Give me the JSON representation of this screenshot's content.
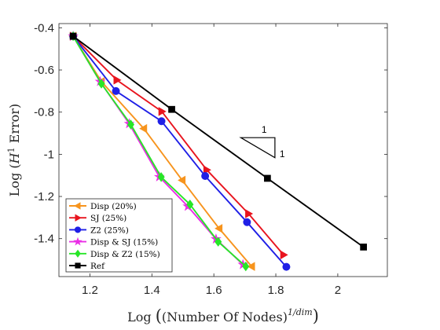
{
  "chart_data": {
    "type": "line",
    "xlabel": "",
    "ylabel": "",
    "xlabel_parts": {
      "prefix": "Log",
      "inner": "(Number Of Nodes)",
      "exponent": "1/dim"
    },
    "ylabel_parts": {
      "prefix": "Log",
      "inner_before": "H",
      "sup": "1",
      "inner_after": " Error"
    },
    "xlim": [
      1.1,
      2.16
    ],
    "ylim": [
      -1.58,
      -0.38
    ],
    "xticks": [
      1.2,
      1.4,
      1.6,
      1.8,
      2
    ],
    "xtick_labels": [
      "1.2",
      "1.4",
      "1.6",
      "1.8",
      "2"
    ],
    "yticks": [
      -0.4,
      -0.6,
      -0.8,
      -1,
      -1.2,
      -1.4
    ],
    "ytick_labels": [
      "-0.4",
      "-0.6",
      "-0.8",
      "-1",
      "-1.2",
      "-1.4"
    ],
    "grid": false,
    "legend_position": "bottom-left",
    "series": [
      {
        "name": "Disp (20%)",
        "color": "#f7941d",
        "marker": "triangle-left",
        "x": [
          1.146,
          1.237,
          1.374,
          1.498,
          1.617,
          1.722
        ],
        "y": [
          -0.44,
          -0.655,
          -0.878,
          -1.123,
          -1.352,
          -1.532
        ]
      },
      {
        "name": "SJ (25%)",
        "color": "#e8141e",
        "marker": "triangle-right",
        "x": [
          1.146,
          1.287,
          1.432,
          1.577,
          1.712,
          1.825
        ],
        "y": [
          -0.44,
          -0.648,
          -0.797,
          -1.074,
          -1.282,
          -1.477
        ]
      },
      {
        "name": "Z2 (25%)",
        "color": "#1f1fe6",
        "marker": "circle",
        "x": [
          1.146,
          1.284,
          1.431,
          1.572,
          1.707,
          1.834
        ],
        "y": [
          -0.44,
          -0.7,
          -0.843,
          -1.103,
          -1.322,
          -1.534
        ]
      },
      {
        "name": "Disp & SJ (15%)",
        "color": "#ea2ee6",
        "marker": "star",
        "x": [
          1.146,
          1.233,
          1.327,
          1.424,
          1.516,
          1.607,
          1.694
        ],
        "y": [
          -0.44,
          -0.655,
          -0.855,
          -1.107,
          -1.247,
          -1.402,
          -1.523
        ]
      },
      {
        "name": "Disp & Z2 (15%)",
        "color": "#27e627",
        "marker": "diamond",
        "x": [
          1.146,
          1.237,
          1.332,
          1.43,
          1.523,
          1.614,
          1.703
        ],
        "y": [
          -0.44,
          -0.665,
          -0.859,
          -1.108,
          -1.238,
          -1.415,
          -1.532
        ]
      },
      {
        "name": "Ref",
        "color": "#000000",
        "marker": "square",
        "x": [
          1.146,
          1.464,
          1.773,
          2.083
        ],
        "y": [
          -0.44,
          -0.787,
          -1.114,
          -1.44
        ]
      }
    ],
    "slope_triangle": {
      "top_label": "1",
      "side_label": "1",
      "vertices": {
        "x": [
          1.687,
          1.797,
          1.797
        ],
        "y": [
          -0.921,
          -0.921,
          -1.016
        ]
      }
    }
  }
}
